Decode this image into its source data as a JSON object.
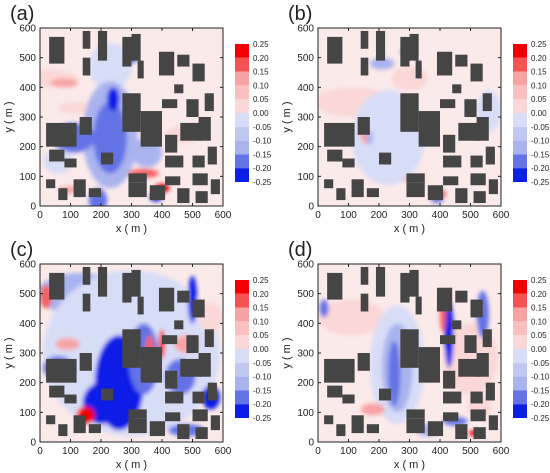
{
  "figure": {
    "colors": {
      "pos3": "#f20000",
      "pos2": "#f36161",
      "pos1": "#f8a3a3",
      "pos0": "#fbd7d7",
      "zero": "#ffffff",
      "neg0": "#d8ddf7",
      "neg1": "#a9b3ee",
      "neg2": "#6473e6",
      "neg3": "#0a1ee6",
      "building": "#454545",
      "frame": "#222222"
    }
  },
  "chart_data": [
    {
      "type": "heatmap",
      "panel_label": "(a)",
      "xlabel": "x ( m )",
      "ylabel": "y ( m )",
      "xlim": [
        0,
        600
      ],
      "ylim": [
        0,
        600
      ],
      "xticks": [
        0,
        100,
        200,
        300,
        400,
        500,
        600
      ],
      "yticks": [
        0,
        100,
        200,
        300,
        400,
        500,
        600
      ],
      "colorbar": {
        "levels": [
          0.25,
          0.2,
          0.15,
          0.1,
          0.05,
          0.0,
          -0.05,
          -0.1,
          -0.15,
          -0.2,
          -0.25
        ]
      },
      "field": [
        {
          "kind": "pos",
          "level": 0,
          "x": 30,
          "y": 430,
          "rx": 90,
          "ry": 30
        },
        {
          "kind": "pos",
          "level": 1,
          "x": 80,
          "y": 415,
          "rx": 45,
          "ry": 15
        },
        {
          "kind": "pos",
          "level": 0,
          "x": 120,
          "y": 330,
          "rx": 60,
          "ry": 20
        },
        {
          "kind": "neg",
          "level": 0,
          "x": 230,
          "y": 470,
          "rx": 70,
          "ry": 80
        },
        {
          "kind": "neg",
          "level": 1,
          "x": 230,
          "y": 240,
          "rx": 90,
          "ry": 180
        },
        {
          "kind": "neg",
          "level": 2,
          "x": 230,
          "y": 230,
          "rx": 55,
          "ry": 120
        },
        {
          "kind": "neg",
          "level": 3,
          "x": 240,
          "y": 360,
          "rx": 20,
          "ry": 40
        },
        {
          "kind": "neg",
          "level": 2,
          "x": 110,
          "y": 230,
          "rx": 70,
          "ry": 50
        },
        {
          "kind": "neg",
          "level": 0,
          "x": 60,
          "y": 150,
          "rx": 50,
          "ry": 40
        },
        {
          "kind": "neg",
          "level": 1,
          "x": 350,
          "y": 180,
          "rx": 50,
          "ry": 50
        },
        {
          "kind": "pos",
          "level": 2,
          "x": 340,
          "y": 110,
          "rx": 50,
          "ry": 15
        },
        {
          "kind": "pos",
          "level": 3,
          "x": 400,
          "y": 60,
          "rx": 25,
          "ry": 15
        },
        {
          "kind": "neg",
          "level": 3,
          "x": 380,
          "y": 30,
          "rx": 20,
          "ry": 15
        },
        {
          "kind": "neg",
          "level": 2,
          "x": 190,
          "y": 20,
          "rx": 30,
          "ry": 40
        },
        {
          "kind": "pos",
          "level": 1,
          "x": 95,
          "y": 55,
          "rx": 35,
          "ry": 12
        },
        {
          "kind": "neg",
          "level": 2,
          "x": 300,
          "y": 500,
          "rx": 20,
          "ry": 20
        },
        {
          "kind": "pos",
          "level": 0,
          "x": 470,
          "y": 240,
          "rx": 60,
          "ry": 30
        }
      ]
    },
    {
      "type": "heatmap",
      "panel_label": "(b)",
      "xlabel": "x ( m )",
      "ylabel": "y ( m )",
      "xlim": [
        0,
        600
      ],
      "ylim": [
        0,
        600
      ],
      "xticks": [
        0,
        100,
        200,
        300,
        400,
        500,
        600
      ],
      "yticks": [
        0,
        100,
        200,
        300,
        400,
        500,
        600
      ],
      "colorbar": {
        "levels": [
          0.25,
          0.2,
          0.15,
          0.1,
          0.05,
          0.0,
          -0.05,
          -0.1,
          -0.15,
          -0.2,
          -0.25
        ]
      },
      "field": [
        {
          "kind": "pos",
          "level": 0,
          "x": 120,
          "y": 350,
          "rx": 130,
          "ry": 50
        },
        {
          "kind": "pos",
          "level": 0,
          "x": 300,
          "y": 430,
          "rx": 60,
          "ry": 40
        },
        {
          "kind": "neg",
          "level": 0,
          "x": 230,
          "y": 230,
          "rx": 120,
          "ry": 160
        },
        {
          "kind": "neg",
          "level": 1,
          "x": 210,
          "y": 480,
          "rx": 40,
          "ry": 20
        },
        {
          "kind": "neg",
          "level": 2,
          "x": 290,
          "y": 520,
          "rx": 20,
          "ry": 10
        },
        {
          "kind": "pos",
          "level": 1,
          "x": 310,
          "y": 90,
          "rx": 30,
          "ry": 10
        },
        {
          "kind": "pos",
          "level": 2,
          "x": 400,
          "y": 40,
          "rx": 20,
          "ry": 15
        },
        {
          "kind": "neg",
          "level": 2,
          "x": 390,
          "y": 20,
          "rx": 20,
          "ry": 10
        },
        {
          "kind": "pos",
          "level": 1,
          "x": 155,
          "y": 240,
          "rx": 15,
          "ry": 30
        },
        {
          "kind": "neg",
          "level": 1,
          "x": 170,
          "y": 230,
          "rx": 10,
          "ry": 25
        },
        {
          "kind": "neg",
          "level": 0,
          "x": 560,
          "y": 320,
          "rx": 40,
          "ry": 70
        }
      ]
    },
    {
      "type": "heatmap",
      "panel_label": "(c)",
      "xlabel": "x ( m )",
      "ylabel": "y ( m )",
      "xlim": [
        0,
        600
      ],
      "ylim": [
        0,
        600
      ],
      "xticks": [
        0,
        100,
        200,
        300,
        400,
        500,
        600
      ],
      "yticks": [
        0,
        100,
        200,
        300,
        400,
        500,
        600
      ],
      "colorbar": {
        "levels": [
          0.25,
          0.2,
          0.15,
          0.1,
          0.05,
          0.0,
          -0.05,
          -0.1,
          -0.15,
          -0.2,
          -0.25
        ]
      },
      "field": [
        {
          "kind": "neg",
          "level": 1,
          "x": 130,
          "y": 500,
          "rx": 140,
          "ry": 70
        },
        {
          "kind": "neg",
          "level": 0,
          "x": 300,
          "y": 300,
          "rx": 290,
          "ry": 280
        },
        {
          "kind": "neg",
          "level": 3,
          "x": 260,
          "y": 200,
          "rx": 80,
          "ry": 160
        },
        {
          "kind": "neg",
          "level": 3,
          "x": 200,
          "y": 130,
          "rx": 60,
          "ry": 70
        },
        {
          "kind": "neg",
          "level": 2,
          "x": 340,
          "y": 280,
          "rx": 50,
          "ry": 120
        },
        {
          "kind": "pos",
          "level": 3,
          "x": 150,
          "y": 90,
          "rx": 30,
          "ry": 30
        },
        {
          "kind": "pos",
          "level": 2,
          "x": 360,
          "y": 300,
          "rx": 15,
          "ry": 60
        },
        {
          "kind": "pos",
          "level": 3,
          "x": 400,
          "y": 330,
          "rx": 10,
          "ry": 50
        },
        {
          "kind": "neg",
          "level": 2,
          "x": 60,
          "y": 250,
          "rx": 50,
          "ry": 40
        },
        {
          "kind": "pos",
          "level": 1,
          "x": 90,
          "y": 330,
          "rx": 40,
          "ry": 20
        },
        {
          "kind": "neg",
          "level": 2,
          "x": 460,
          "y": 220,
          "rx": 50,
          "ry": 60
        },
        {
          "kind": "pos",
          "level": 1,
          "x": 480,
          "y": 330,
          "rx": 40,
          "ry": 30
        },
        {
          "kind": "neg",
          "level": 3,
          "x": 500,
          "y": 480,
          "rx": 15,
          "ry": 80
        },
        {
          "kind": "pos",
          "level": 2,
          "x": 20,
          "y": 490,
          "rx": 20,
          "ry": 40
        },
        {
          "kind": "neg",
          "level": 3,
          "x": 560,
          "y": 150,
          "rx": 30,
          "ry": 40
        },
        {
          "kind": "pos",
          "level": 0,
          "x": 560,
          "y": 420,
          "rx": 40,
          "ry": 50
        },
        {
          "kind": "neg",
          "level": 2,
          "x": 480,
          "y": 40,
          "rx": 60,
          "ry": 20
        }
      ]
    },
    {
      "type": "heatmap",
      "panel_label": "(d)",
      "xlabel": "x ( m )",
      "ylabel": "y ( m )",
      "xlim": [
        0,
        600
      ],
      "ylim": [
        0,
        600
      ],
      "xticks": [
        0,
        100,
        200,
        300,
        400,
        500,
        600
      ],
      "yticks": [
        0,
        100,
        200,
        300,
        400,
        500,
        600
      ],
      "colorbar": {
        "levels": [
          0.25,
          0.2,
          0.15,
          0.1,
          0.05,
          0.0,
          -0.05,
          -0.1,
          -0.15,
          -0.2,
          -0.25
        ]
      },
      "field": [
        {
          "kind": "pos",
          "level": 0,
          "x": 110,
          "y": 420,
          "rx": 110,
          "ry": 60
        },
        {
          "kind": "pos",
          "level": 0,
          "x": 500,
          "y": 280,
          "rx": 90,
          "ry": 120
        },
        {
          "kind": "neg",
          "level": 0,
          "x": 260,
          "y": 260,
          "rx": 90,
          "ry": 200
        },
        {
          "kind": "neg",
          "level": 1,
          "x": 260,
          "y": 250,
          "rx": 50,
          "ry": 150
        },
        {
          "kind": "neg",
          "level": 2,
          "x": 250,
          "y": 230,
          "rx": 20,
          "ry": 110
        },
        {
          "kind": "neg",
          "level": 3,
          "x": 430,
          "y": 360,
          "rx": 15,
          "ry": 110
        },
        {
          "kind": "pos",
          "level": 2,
          "x": 410,
          "y": 430,
          "rx": 10,
          "ry": 60
        },
        {
          "kind": "neg",
          "level": 2,
          "x": 540,
          "y": 430,
          "rx": 20,
          "ry": 80
        },
        {
          "kind": "pos",
          "level": 0,
          "x": 530,
          "y": 120,
          "rx": 40,
          "ry": 40
        },
        {
          "kind": "neg",
          "level": 2,
          "x": 450,
          "y": 70,
          "rx": 40,
          "ry": 15
        },
        {
          "kind": "pos",
          "level": 3,
          "x": 510,
          "y": 30,
          "rx": 15,
          "ry": 10
        },
        {
          "kind": "neg",
          "level": 2,
          "x": 20,
          "y": 450,
          "rx": 15,
          "ry": 30
        },
        {
          "kind": "pos",
          "level": 1,
          "x": 180,
          "y": 110,
          "rx": 40,
          "ry": 20
        },
        {
          "kind": "neg",
          "level": 1,
          "x": 360,
          "y": 40,
          "rx": 40,
          "ry": 20
        }
      ]
    }
  ],
  "buildings": [
    [
      30,
      480,
      50,
      90
    ],
    [
      140,
      530,
      25,
      60
    ],
    [
      140,
      440,
      25,
      60
    ],
    [
      190,
      490,
      30,
      100
    ],
    [
      270,
      470,
      30,
      100
    ],
    [
      300,
      490,
      30,
      90
    ],
    [
      320,
      430,
      20,
      60
    ],
    [
      390,
      440,
      50,
      80
    ],
    [
      450,
      470,
      40,
      40
    ],
    [
      440,
      380,
      30,
      30
    ],
    [
      500,
      420,
      40,
      60
    ],
    [
      400,
      330,
      50,
      30
    ],
    [
      480,
      300,
      40,
      60
    ],
    [
      540,
      320,
      30,
      60
    ],
    [
      20,
      200,
      100,
      80
    ],
    [
      130,
      240,
      40,
      60
    ],
    [
      30,
      150,
      50,
      40
    ],
    [
      80,
      130,
      40,
      30
    ],
    [
      270,
      250,
      60,
      130
    ],
    [
      200,
      140,
      40,
      40
    ],
    [
      330,
      200,
      70,
      120
    ],
    [
      410,
      180,
      40,
      60
    ],
    [
      460,
      220,
      70,
      60
    ],
    [
      520,
      220,
      40,
      80
    ],
    [
      410,
      130,
      60,
      40
    ],
    [
      500,
      130,
      40,
      40
    ],
    [
      550,
      140,
      30,
      60
    ],
    [
      20,
      60,
      30,
      30
    ],
    [
      60,
      20,
      30,
      40
    ],
    [
      110,
      30,
      40,
      60
    ],
    [
      160,
      30,
      40,
      30
    ],
    [
      290,
      30,
      60,
      50
    ],
    [
      290,
      80,
      60,
      30
    ],
    [
      360,
      20,
      50,
      50
    ],
    [
      410,
      70,
      50,
      30
    ],
    [
      450,
      10,
      40,
      50
    ],
    [
      500,
      70,
      50,
      40
    ],
    [
      510,
      10,
      40,
      40
    ],
    [
      560,
      40,
      30,
      50
    ]
  ]
}
